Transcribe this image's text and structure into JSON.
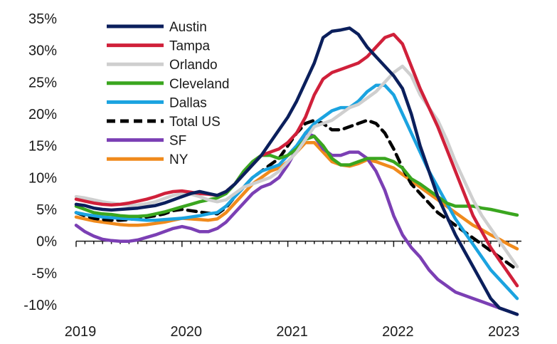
{
  "chart_data": {
    "type": "line",
    "title": "",
    "xlabel": "",
    "ylabel": "",
    "x": [
      "2019-01",
      "2019-02",
      "2019-03",
      "2019-04",
      "2019-05",
      "2019-06",
      "2019-07",
      "2019-08",
      "2019-09",
      "2019-10",
      "2019-11",
      "2019-12",
      "2020-01",
      "2020-02",
      "2020-03",
      "2020-04",
      "2020-05",
      "2020-06",
      "2020-07",
      "2020-08",
      "2020-09",
      "2020-10",
      "2020-11",
      "2020-12",
      "2021-01",
      "2021-02",
      "2021-03",
      "2021-04",
      "2021-05",
      "2021-06",
      "2021-07",
      "2021-08",
      "2021-09",
      "2021-10",
      "2021-11",
      "2021-12",
      "2022-01",
      "2022-02",
      "2022-03",
      "2022-04",
      "2022-05",
      "2022-06",
      "2022-07",
      "2022-08",
      "2022-09",
      "2022-10",
      "2022-11",
      "2022-12",
      "2023-01",
      "2023-02",
      "2023-03"
    ],
    "x_ticks": [
      "2019",
      "2020",
      "2021",
      "2022",
      "2023"
    ],
    "ylim": [
      -10,
      35
    ],
    "y_ticks": [
      -10,
      -5,
      0,
      5,
      10,
      15,
      20,
      25,
      30,
      35
    ],
    "y_tick_labels": [
      "-10%",
      "-5%",
      "0%",
      "5%",
      "10%",
      "15%",
      "20%",
      "25%",
      "30%",
      "35%"
    ],
    "grid": false,
    "legend_position": "top-left",
    "series": [
      {
        "name": "Austin",
        "color": "#0b1f5c",
        "dash": "solid",
        "values": [
          5.8,
          5.6,
          5.2,
          5.0,
          4.9,
          5.0,
          5.1,
          5.2,
          5.4,
          5.6,
          6.0,
          6.5,
          7.0,
          7.5,
          7.8,
          7.5,
          7.2,
          7.8,
          9.0,
          10.5,
          12.0,
          13.5,
          15.5,
          17.5,
          19.5,
          22.0,
          25.0,
          28.0,
          32.0,
          33.0,
          33.2,
          33.5,
          32.5,
          30.5,
          29.0,
          27.5,
          26.0,
          24.0,
          20.0,
          15.0,
          11.0,
          7.0,
          4.0,
          1.0,
          -1.5,
          -4.0,
          -6.5,
          -9.0,
          -10.5,
          -11.0,
          -11.5
        ]
      },
      {
        "name": "Tampa",
        "color": "#d0203a",
        "dash": "solid",
        "values": [
          6.6,
          6.3,
          6.0,
          5.8,
          5.7,
          5.8,
          6.0,
          6.3,
          6.6,
          7.0,
          7.5,
          7.8,
          7.9,
          7.7,
          7.5,
          7.4,
          7.2,
          7.8,
          9.0,
          10.5,
          12.0,
          13.5,
          14.0,
          14.5,
          15.5,
          17.0,
          19.5,
          23.0,
          25.5,
          26.5,
          27.0,
          27.5,
          28.0,
          29.0,
          30.5,
          32.0,
          32.5,
          31.0,
          27.5,
          24.0,
          21.0,
          18.0,
          14.5,
          11.0,
          7.5,
          4.0,
          1.5,
          -1.0,
          -3.0,
          -5.0,
          -7.0
        ]
      },
      {
        "name": "Orlando",
        "color": "#cfcfcf",
        "dash": "solid",
        "values": [
          7.0,
          6.8,
          6.5,
          6.2,
          6.0,
          5.8,
          5.6,
          5.7,
          5.9,
          6.2,
          6.7,
          7.2,
          7.5,
          7.4,
          7.0,
          6.5,
          6.2,
          6.5,
          7.5,
          8.5,
          9.0,
          9.5,
          10.0,
          11.0,
          12.5,
          14.0,
          16.0,
          18.0,
          18.5,
          19.0,
          20.0,
          21.0,
          21.5,
          22.5,
          23.5,
          25.0,
          26.5,
          27.5,
          26.0,
          23.0,
          21.0,
          19.0,
          16.0,
          12.5,
          9.5,
          6.5,
          4.0,
          2.0,
          0.0,
          -2.0,
          -4.0
        ]
      },
      {
        "name": "Cleveland",
        "color": "#3aa61f",
        "dash": "solid",
        "values": [
          5.5,
          5.0,
          4.5,
          4.3,
          4.2,
          4.0,
          3.9,
          3.9,
          4.0,
          4.3,
          4.6,
          5.0,
          5.4,
          5.8,
          6.2,
          6.5,
          6.8,
          7.5,
          9.0,
          11.0,
          12.5,
          13.5,
          13.5,
          13.0,
          13.5,
          14.5,
          16.0,
          16.5,
          15.0,
          13.0,
          12.0,
          12.0,
          12.5,
          13.0,
          13.0,
          13.0,
          12.5,
          11.5,
          9.8,
          9.0,
          8.0,
          7.0,
          6.0,
          5.5,
          5.5,
          5.5,
          5.2,
          5.0,
          4.7,
          4.4,
          4.1
        ]
      },
      {
        "name": "Dallas",
        "color": "#1ba3e0",
        "dash": "solid",
        "values": [
          4.5,
          4.2,
          4.0,
          3.8,
          3.7,
          3.6,
          3.5,
          3.4,
          3.3,
          3.3,
          3.4,
          3.5,
          3.6,
          3.8,
          4.0,
          4.3,
          4.5,
          5.5,
          7.0,
          8.5,
          10.0,
          11.0,
          11.5,
          12.0,
          13.5,
          15.0,
          17.0,
          18.5,
          19.5,
          20.5,
          21.0,
          21.0,
          22.0,
          23.5,
          24.5,
          24.5,
          23.0,
          20.0,
          17.0,
          14.0,
          11.0,
          8.5,
          6.0,
          3.5,
          1.5,
          -0.5,
          -2.5,
          -4.5,
          -6.0,
          -7.5,
          -9.0
        ]
      },
      {
        "name": "Total US",
        "color": "#000000",
        "dash": "dashed",
        "values": [
          4.5,
          4.0,
          3.6,
          3.4,
          3.3,
          3.3,
          3.4,
          3.6,
          3.8,
          4.0,
          4.3,
          4.8,
          5.0,
          4.8,
          4.6,
          4.4,
          4.3,
          5.3,
          7.0,
          8.5,
          10.0,
          11.0,
          12.0,
          13.0,
          15.0,
          17.0,
          18.5,
          19.0,
          18.5,
          17.5,
          17.5,
          18.0,
          18.5,
          19.0,
          18.5,
          17.0,
          14.5,
          11.5,
          9.0,
          7.5,
          6.0,
          4.5,
          3.5,
          2.5,
          1.5,
          0.5,
          -0.5,
          -1.5,
          -2.5,
          -3.5,
          -4.5
        ]
      },
      {
        "name": "SF",
        "color": "#7b3fb4",
        "dash": "solid",
        "values": [
          2.5,
          1.5,
          0.8,
          0.3,
          0.1,
          0.0,
          0.0,
          0.2,
          0.6,
          1.0,
          1.5,
          2.0,
          2.3,
          2.0,
          1.5,
          1.5,
          2.0,
          3.0,
          4.5,
          6.0,
          7.5,
          8.5,
          9.0,
          10.0,
          12.0,
          14.5,
          17.0,
          16.5,
          14.5,
          13.5,
          13.5,
          14.0,
          14.0,
          13.0,
          11.0,
          8.0,
          4.0,
          1.0,
          -1.0,
          -2.5,
          -4.5,
          -6.0,
          -7.0,
          -8.0,
          -8.5,
          -9.0,
          -9.5,
          -10.0,
          -10.5,
          -11.0,
          -11.5
        ]
      },
      {
        "name": "NY",
        "color": "#f08a1c",
        "dash": "solid",
        "values": [
          3.8,
          3.5,
          3.2,
          3.0,
          2.8,
          2.6,
          2.5,
          2.5,
          2.6,
          2.8,
          3.0,
          3.3,
          3.6,
          3.5,
          3.4,
          3.3,
          3.5,
          4.5,
          6.0,
          7.5,
          9.0,
          10.0,
          11.0,
          11.5,
          12.5,
          14.0,
          15.5,
          15.5,
          14.0,
          12.5,
          12.0,
          11.8,
          12.2,
          12.8,
          12.5,
          12.0,
          11.5,
          10.5,
          9.5,
          8.5,
          7.5,
          6.5,
          5.5,
          4.5,
          3.5,
          2.5,
          1.8,
          1.0,
          0.3,
          -0.5,
          -1.2
        ]
      }
    ]
  }
}
